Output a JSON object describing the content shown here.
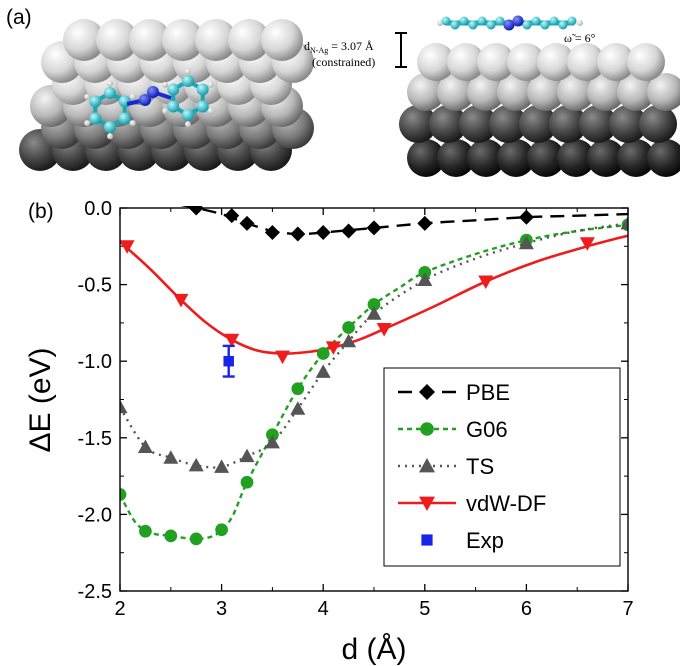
{
  "panel_a": {
    "label": "(a)",
    "distance_label": "d",
    "distance_subscript": "N-Ag",
    "distance_value": " = 3.07 Å",
    "constraint_note": "(constrained)",
    "angle_label": "ω̃ = 6°"
  },
  "panel_b": {
    "label": "(b)"
  },
  "chart_data": {
    "type": "line",
    "xlabel": "d (Å)",
    "ylabel": "ΔE (eV)",
    "xlim": [
      2,
      7
    ],
    "ylim": [
      -2.5,
      0.0
    ],
    "xticks": [
      "2",
      "3",
      "4",
      "5",
      "6",
      "7"
    ],
    "yticks": [
      "0.0",
      "-0.5",
      "-1.0",
      "-1.5",
      "-2.0",
      "-2.5"
    ],
    "grid": false,
    "legend_position": "bottom-right",
    "series": [
      {
        "name": "PBE",
        "color": "#000000",
        "marker": "diamond",
        "dash": "14,8",
        "points": [
          [
            2.75,
            0.0
          ],
          [
            3.1,
            -0.05
          ],
          [
            3.25,
            -0.1
          ],
          [
            3.5,
            -0.16
          ],
          [
            3.75,
            -0.17
          ],
          [
            4.0,
            -0.16
          ],
          [
            4.25,
            -0.15
          ],
          [
            4.5,
            -0.13
          ],
          [
            5.0,
            -0.1
          ],
          [
            6.0,
            -0.06
          ]
        ],
        "curve": [
          [
            2.6,
            0.02
          ],
          [
            2.75,
            0.0
          ],
          [
            3.0,
            -0.04
          ],
          [
            3.25,
            -0.1
          ],
          [
            3.5,
            -0.15
          ],
          [
            3.75,
            -0.17
          ],
          [
            4.0,
            -0.16
          ],
          [
            4.5,
            -0.13
          ],
          [
            5.0,
            -0.1
          ],
          [
            5.5,
            -0.08
          ],
          [
            6.0,
            -0.06
          ],
          [
            6.5,
            -0.05
          ],
          [
            7.0,
            -0.04
          ]
        ]
      },
      {
        "name": "G06",
        "color": "#22a022",
        "marker": "circle",
        "dash": "5,4",
        "points": [
          [
            2.0,
            -1.87
          ],
          [
            2.25,
            -2.11
          ],
          [
            2.5,
            -2.14
          ],
          [
            2.75,
            -2.16
          ],
          [
            3.0,
            -2.1
          ],
          [
            3.25,
            -1.79
          ],
          [
            3.5,
            -1.48
          ],
          [
            3.75,
            -1.18
          ],
          [
            4.0,
            -0.95
          ],
          [
            4.25,
            -0.78
          ],
          [
            4.5,
            -0.63
          ],
          [
            5.0,
            -0.42
          ],
          [
            6.0,
            -0.21
          ],
          [
            7.0,
            -0.11
          ]
        ],
        "curve": [
          [
            2.0,
            -1.87
          ],
          [
            2.15,
            -2.05
          ],
          [
            2.3,
            -2.12
          ],
          [
            2.5,
            -2.14
          ],
          [
            2.75,
            -2.16
          ],
          [
            2.95,
            -2.13
          ],
          [
            3.1,
            -2.02
          ],
          [
            3.25,
            -1.79
          ],
          [
            3.5,
            -1.48
          ],
          [
            3.75,
            -1.18
          ],
          [
            4.0,
            -0.95
          ],
          [
            4.25,
            -0.78
          ],
          [
            4.5,
            -0.63
          ],
          [
            4.75,
            -0.52
          ],
          [
            5.0,
            -0.42
          ],
          [
            5.5,
            -0.3
          ],
          [
            6.0,
            -0.21
          ],
          [
            6.5,
            -0.15
          ],
          [
            7.0,
            -0.11
          ]
        ]
      },
      {
        "name": "TS",
        "color": "#555555",
        "marker": "triangle-up",
        "dash": "2,5",
        "points": [
          [
            2.0,
            -1.3
          ],
          [
            2.25,
            -1.56
          ],
          [
            2.5,
            -1.63
          ],
          [
            2.75,
            -1.68
          ],
          [
            3.0,
            -1.69
          ],
          [
            3.25,
            -1.62
          ],
          [
            3.5,
            -1.53
          ],
          [
            3.75,
            -1.31
          ],
          [
            4.0,
            -1.07
          ],
          [
            4.25,
            -0.87
          ],
          [
            4.5,
            -0.69
          ],
          [
            5.0,
            -0.47
          ],
          [
            6.0,
            -0.23
          ],
          [
            7.0,
            -0.1
          ]
        ],
        "curve": [
          [
            2.0,
            -1.3
          ],
          [
            2.25,
            -1.56
          ],
          [
            2.5,
            -1.63
          ],
          [
            2.75,
            -1.68
          ],
          [
            3.0,
            -1.69
          ],
          [
            3.25,
            -1.62
          ],
          [
            3.5,
            -1.53
          ],
          [
            3.75,
            -1.31
          ],
          [
            4.0,
            -1.07
          ],
          [
            4.25,
            -0.87
          ],
          [
            4.5,
            -0.69
          ],
          [
            5.0,
            -0.47
          ],
          [
            5.5,
            -0.33
          ],
          [
            6.0,
            -0.23
          ],
          [
            6.5,
            -0.15
          ],
          [
            7.0,
            -0.1
          ]
        ]
      },
      {
        "name": "vdW-DF",
        "color": "#ee1c1c",
        "marker": "triangle-down",
        "dash": "",
        "points": [
          [
            2.07,
            -0.25
          ],
          [
            2.6,
            -0.6
          ],
          [
            3.1,
            -0.86
          ],
          [
            3.6,
            -0.97
          ],
          [
            4.1,
            -0.91
          ],
          [
            4.6,
            -0.79
          ],
          [
            5.6,
            -0.48
          ],
          [
            6.6,
            -0.23
          ]
        ],
        "curve": [
          [
            2.0,
            -0.22
          ],
          [
            2.3,
            -0.4
          ],
          [
            2.6,
            -0.6
          ],
          [
            2.85,
            -0.75
          ],
          [
            3.1,
            -0.86
          ],
          [
            3.35,
            -0.93
          ],
          [
            3.6,
            -0.95
          ],
          [
            3.85,
            -0.94
          ],
          [
            4.1,
            -0.91
          ],
          [
            4.35,
            -0.86
          ],
          [
            4.6,
            -0.79
          ],
          [
            5.1,
            -0.64
          ],
          [
            5.6,
            -0.48
          ],
          [
            6.1,
            -0.35
          ],
          [
            6.6,
            -0.25
          ],
          [
            7.0,
            -0.18
          ]
        ]
      },
      {
        "name": "Exp",
        "color": "#1a24e8",
        "marker": "square",
        "dash": "none",
        "points": [
          [
            3.07,
            -1.0
          ]
        ],
        "error": [
          0.1
        ]
      }
    ]
  }
}
